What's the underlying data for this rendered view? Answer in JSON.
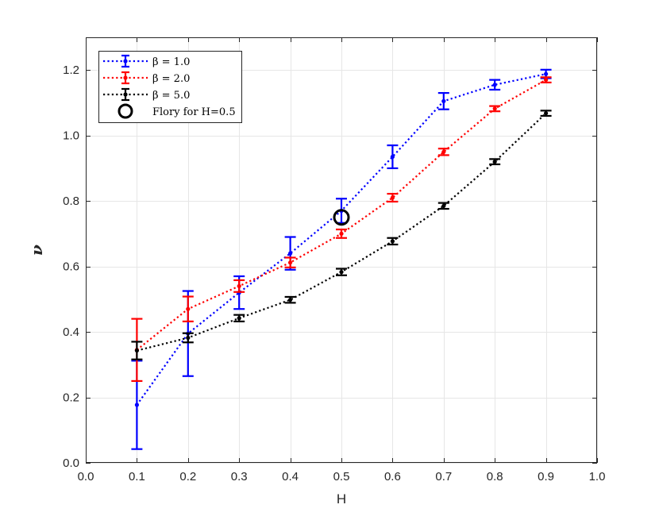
{
  "chart_data": {
    "type": "line",
    "xlabel": "H",
    "ylabel": "ν",
    "xlim": [
      0.0,
      1.0
    ],
    "ylim": [
      0.0,
      1.3
    ],
    "xticks": [
      "0.0",
      "0.1",
      "0.2",
      "0.3",
      "0.4",
      "0.5",
      "0.6",
      "0.7",
      "0.8",
      "0.9",
      "1.0"
    ],
    "yticks": [
      "0.0",
      "0.2",
      "0.4",
      "0.6",
      "0.8",
      "1.0",
      "1.2"
    ],
    "grid": true,
    "legend_position": "top-left",
    "x": [
      0.1,
      0.2,
      0.3,
      0.4,
      0.5,
      0.6,
      0.7,
      0.8,
      0.9
    ],
    "series": [
      {
        "name": "β = 1.0",
        "color": "#0000ff",
        "values": [
          0.177,
          0.395,
          0.52,
          0.64,
          0.77,
          0.935,
          1.105,
          1.155,
          1.188
        ],
        "errors": [
          0.135,
          0.13,
          0.05,
          0.05,
          0.037,
          0.035,
          0.025,
          0.015,
          0.013
        ]
      },
      {
        "name": "β = 2.0",
        "color": "#ff0000",
        "values": [
          0.345,
          0.47,
          0.54,
          0.612,
          0.7,
          0.81,
          0.95,
          1.082,
          1.17
        ],
        "errors": [
          0.095,
          0.038,
          0.018,
          0.015,
          0.013,
          0.012,
          0.01,
          0.008,
          0.008
        ]
      },
      {
        "name": "β = 5.0",
        "color": "#000000",
        "values": [
          0.343,
          0.382,
          0.442,
          0.498,
          0.583,
          0.677,
          0.785,
          0.92,
          1.068
        ],
        "errors": [
          0.027,
          0.014,
          0.01,
          0.009,
          0.01,
          0.01,
          0.009,
          0.008,
          0.008
        ]
      }
    ],
    "annotations": [
      {
        "name": "Flory for H=0.5",
        "type": "marker",
        "x": 0.5,
        "y": 0.75
      }
    ]
  }
}
